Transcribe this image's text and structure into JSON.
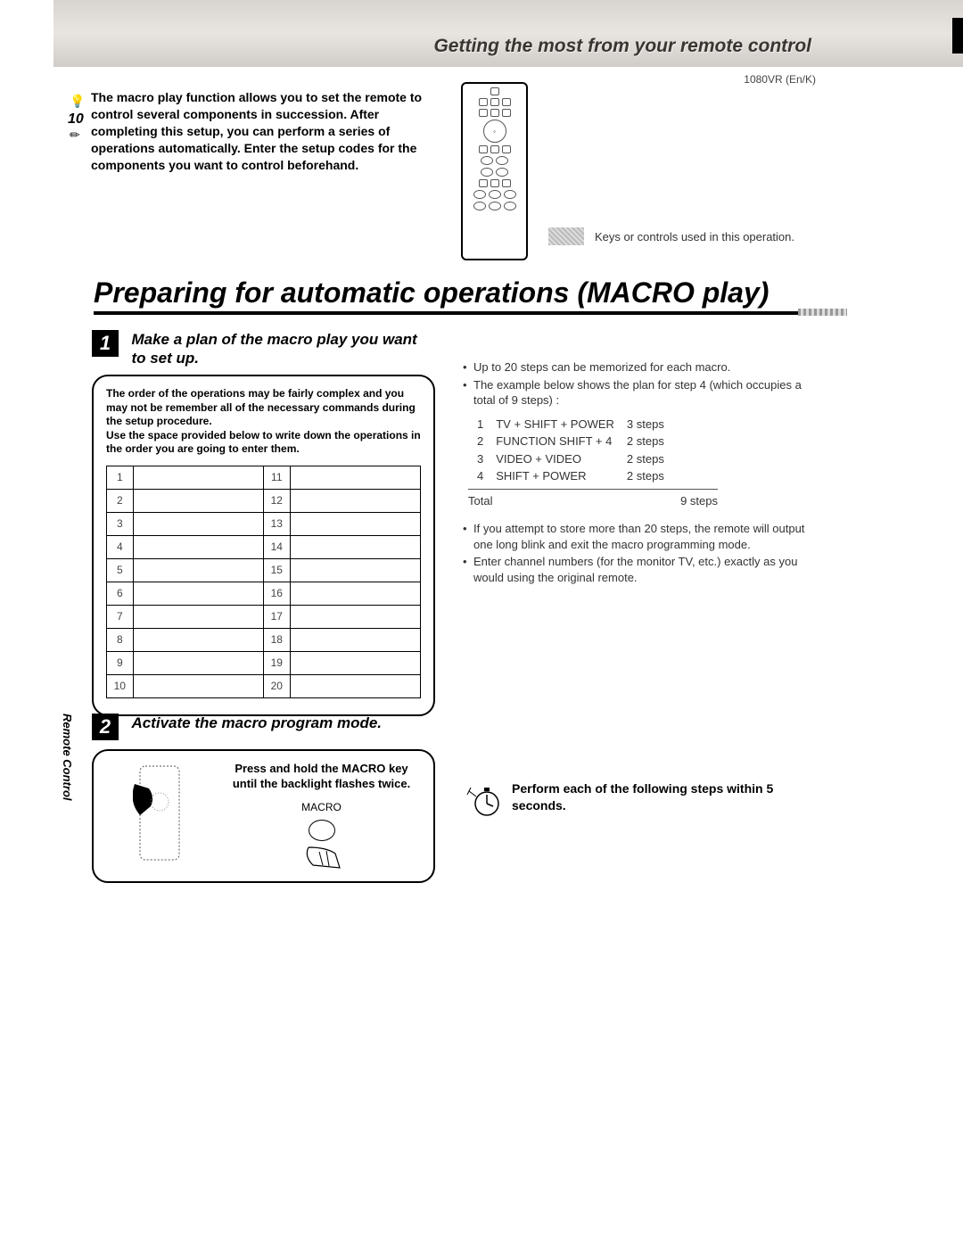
{
  "header": {
    "title": "Getting the most from your remote control",
    "doc_code": "1080VR (En/K)"
  },
  "intro": {
    "text": "The macro play function allows you to set the remote to control several components in succession. After completing this setup, you can perform a series of operations automatically. Enter the setup codes for the components you want to control beforehand."
  },
  "legend": {
    "text": "Keys or controls used in this operation."
  },
  "main_heading": "Preparing for automatic operations (MACRO play)",
  "step1": {
    "number": "1",
    "label": "Make a plan of the macro play you want to set up.",
    "box_text1": "The order of the operations may be fairly complex and you may not be remember all of the necessary commands during the setup procedure.",
    "box_text2": "Use the space provided below to write down the operations in the order you are going to enter them.",
    "rows_left": [
      "1",
      "2",
      "3",
      "4",
      "5",
      "6",
      "7",
      "8",
      "9",
      "10"
    ],
    "rows_right": [
      "11",
      "12",
      "13",
      "14",
      "15",
      "16",
      "17",
      "18",
      "19",
      "20"
    ]
  },
  "notes": {
    "n1": "Up to 20 steps can be memorized for each macro.",
    "n2": "The example below shows the plan for step 4 (which occupies a total of 9 steps) :",
    "example": [
      {
        "idx": "1",
        "op": "TV + SHIFT + POWER",
        "steps": "3 steps"
      },
      {
        "idx": "2",
        "op": "FUNCTION SHIFT + 4",
        "steps": "2 steps"
      },
      {
        "idx": "3",
        "op": "VIDEO  + VIDEO",
        "steps": "2 steps"
      },
      {
        "idx": "4",
        "op": "SHIFT + POWER",
        "steps": "2 steps"
      }
    ],
    "total_label": "Total",
    "total_steps": "9 steps",
    "n3": "If you attempt to store more than 20 steps, the remote will output one long blink and exit the macro programming mode.",
    "n4": "Enter channel numbers (for the monitor TV, etc.) exactly as you would using the original remote."
  },
  "step2": {
    "number": "2",
    "label": "Activate the macro program mode.",
    "instruction": "Press and hold the MACRO key until the backlight flashes twice.",
    "key_label": "MACRO"
  },
  "perform": {
    "text": "Perform each of the following steps within 5 seconds."
  },
  "side_label": "Remote Control"
}
